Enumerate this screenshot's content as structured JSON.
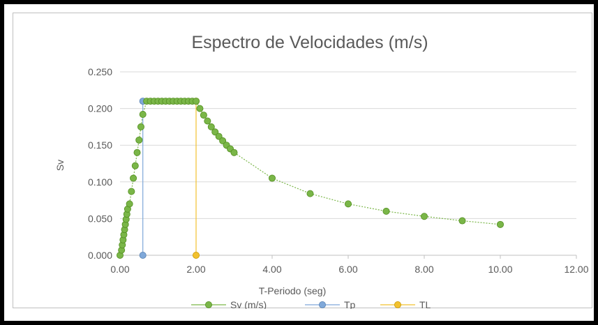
{
  "chart_data": {
    "type": "scatter",
    "title": "Espectro de Velocidades (m/s)",
    "xlabel": "T-Periodo (seg)",
    "ylabel": "Sv",
    "xlim": [
      0,
      12
    ],
    "ylim": [
      0,
      0.25
    ],
    "x_ticks": [
      "0.00",
      "2.00",
      "4.00",
      "6.00",
      "8.00",
      "10.00",
      "12.00"
    ],
    "y_ticks": [
      "0.000",
      "0.050",
      "0.100",
      "0.150",
      "0.200",
      "0.250"
    ],
    "grid": true,
    "legend_position": "bottom",
    "series": [
      {
        "name": "Sv (m/s)",
        "color": "#7ab648",
        "style": "dotted-line-markers",
        "points": [
          [
            0.0,
            0.0
          ],
          [
            0.04,
            0.007
          ],
          [
            0.06,
            0.014
          ],
          [
            0.08,
            0.021
          ],
          [
            0.1,
            0.028
          ],
          [
            0.12,
            0.035
          ],
          [
            0.14,
            0.042
          ],
          [
            0.16,
            0.049
          ],
          [
            0.18,
            0.056
          ],
          [
            0.2,
            0.063
          ],
          [
            0.25,
            0.07
          ],
          [
            0.3,
            0.087
          ],
          [
            0.35,
            0.105
          ],
          [
            0.4,
            0.122
          ],
          [
            0.45,
            0.14
          ],
          [
            0.5,
            0.157
          ],
          [
            0.55,
            0.175
          ],
          [
            0.6,
            0.192
          ],
          [
            0.7,
            0.21
          ],
          [
            0.8,
            0.21
          ],
          [
            0.9,
            0.21
          ],
          [
            1.0,
            0.21
          ],
          [
            1.1,
            0.21
          ],
          [
            1.2,
            0.21
          ],
          [
            1.3,
            0.21
          ],
          [
            1.4,
            0.21
          ],
          [
            1.5,
            0.21
          ],
          [
            1.6,
            0.21
          ],
          [
            1.7,
            0.21
          ],
          [
            1.8,
            0.21
          ],
          [
            1.9,
            0.21
          ],
          [
            2.0,
            0.21
          ],
          [
            2.1,
            0.2
          ],
          [
            2.2,
            0.191
          ],
          [
            2.3,
            0.183
          ],
          [
            2.4,
            0.175
          ],
          [
            2.5,
            0.168
          ],
          [
            2.6,
            0.162
          ],
          [
            2.7,
            0.156
          ],
          [
            2.8,
            0.15
          ],
          [
            2.9,
            0.145
          ],
          [
            3.0,
            0.14
          ],
          [
            4.0,
            0.105
          ],
          [
            5.0,
            0.084
          ],
          [
            6.0,
            0.07
          ],
          [
            7.0,
            0.06
          ],
          [
            8.0,
            0.053
          ],
          [
            9.0,
            0.047
          ],
          [
            10.0,
            0.042
          ]
        ]
      },
      {
        "name": "Tp",
        "color": "#7fa8d9",
        "style": "line-markers",
        "points": [
          [
            0.6,
            0.21
          ],
          [
            0.6,
            0.0
          ]
        ]
      },
      {
        "name": "TL",
        "color": "#f2c12e",
        "style": "line-markers",
        "points": [
          [
            2.0,
            0.21
          ],
          [
            2.0,
            0.0
          ]
        ]
      }
    ]
  }
}
